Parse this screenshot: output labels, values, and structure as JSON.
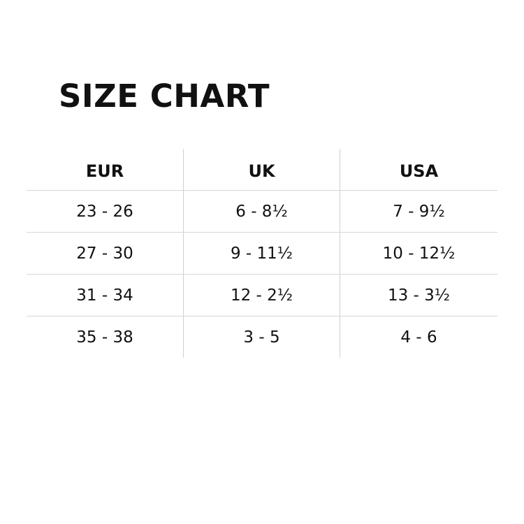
{
  "title": "SIZE CHART",
  "table": {
    "headers": [
      "EUR",
      "UK",
      "USA"
    ],
    "rows": [
      [
        "23 - 26",
        "6 - 8½",
        "7 - 9½"
      ],
      [
        "27 - 30",
        "9 - 11½",
        "10 - 12½"
      ],
      [
        "31 - 34",
        "12 - 2½",
        "13 - 3½"
      ],
      [
        "35 - 38",
        "3 - 5",
        "4 - 6"
      ]
    ]
  }
}
